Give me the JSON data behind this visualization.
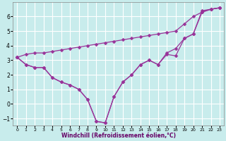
{
  "background_color": "#c8ecec",
  "grid_color": "#b0d8d8",
  "line_color": "#993399",
  "x_data": [
    0,
    1,
    2,
    3,
    4,
    5,
    6,
    7,
    8,
    9,
    10,
    11,
    12,
    13,
    14,
    15,
    16,
    17,
    18,
    19,
    20,
    21,
    22,
    23
  ],
  "line1": [
    3.2,
    2.7,
    2.5,
    2.5,
    1.8,
    1.5,
    1.3,
    1.0,
    0.3,
    -1.2,
    -1.3,
    0.5,
    1.5,
    2.0,
    2.7,
    3.0,
    2.7,
    3.5,
    3.8,
    4.5,
    4.8,
    6.4,
    6.5,
    6.6
  ],
  "line2": [
    3.2,
    2.7,
    2.5,
    2.5,
    1.8,
    1.5,
    1.3,
    1.0,
    0.3,
    -1.2,
    -1.3,
    0.5,
    1.5,
    2.0,
    2.7,
    3.0,
    2.7,
    3.4,
    3.3,
    4.5,
    4.8,
    6.3,
    6.5,
    6.6
  ],
  "line3": [
    3.2,
    3.4,
    3.5,
    3.5,
    3.6,
    3.7,
    3.8,
    3.9,
    4.0,
    4.1,
    4.2,
    4.3,
    4.4,
    4.5,
    4.6,
    4.7,
    4.8,
    4.9,
    5.0,
    5.5,
    6.0,
    6.3,
    6.5,
    6.6
  ],
  "xlim": [
    -0.5,
    23.5
  ],
  "ylim": [
    -1.5,
    7.0
  ],
  "xticks": [
    0,
    1,
    2,
    3,
    4,
    5,
    6,
    7,
    8,
    9,
    10,
    11,
    12,
    13,
    14,
    15,
    16,
    17,
    18,
    19,
    20,
    21,
    22,
    23
  ],
  "yticks": [
    -1,
    0,
    1,
    2,
    3,
    4,
    5,
    6
  ],
  "xlabel": "Windchill (Refroidissement éolien,°C)",
  "xlabel_color": "#660066",
  "xlabel_fontsize": 5.5,
  "tick_fontsize_x": 4.5,
  "tick_fontsize_y": 5.5,
  "marker_size": 2.5,
  "linewidth": 0.9
}
